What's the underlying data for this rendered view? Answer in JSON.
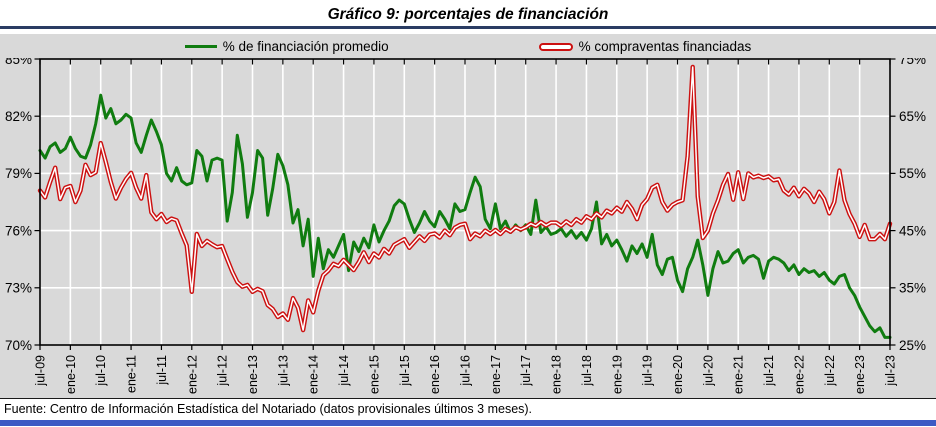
{
  "title": "Gráfico 9: porcentajes de financiación",
  "legend": [
    {
      "label": "% de financiación promedio",
      "color": "#107c10",
      "line_style": "solid"
    },
    {
      "label": "% compraventas financiadas",
      "color": "#cc1111",
      "line_style": "double"
    }
  ],
  "footer": {
    "text": "Fuente: Centro de Información Estadística del Notariado (datos provisionales últimos 3 meses)."
  },
  "colors": {
    "panel_background": "#d9d9d9",
    "plot_background": "#d9d9d9",
    "gridline": "#ffffff",
    "axis": "#000000",
    "title_rule": "#2a3c63",
    "bottom_bar": "#3c59c4",
    "green_series": "#107c10",
    "red_series": "#cc1111"
  },
  "chart_data": {
    "type": "line",
    "title": "Gráfico 9: porcentajes de financiación",
    "frequency": "monthly",
    "x_start": "jul-09",
    "x_end": "jul-23",
    "grid": true,
    "legend_position": "top",
    "plot_bg_color": "#d9d9d9",
    "x_tick_labels": [
      "jul-09",
      "ene-10",
      "jul-10",
      "ene-11",
      "jul-11",
      "ene-12",
      "jul-12",
      "ene-13",
      "jul-13",
      "ene-14",
      "jul-14",
      "ene-15",
      "jul-15",
      "ene-16",
      "jul-16",
      "ene-17",
      "jul-17",
      "ene-18",
      "jul-18",
      "ene-19",
      "jul-19",
      "ene-20",
      "jul-20",
      "ene-21",
      "jul-21",
      "ene-22",
      "jul-22",
      "ene-23",
      "jul-23"
    ],
    "left_axis": {
      "ticks": [
        "85%",
        "82%",
        "79%",
        "76%",
        "73%",
        "70%"
      ],
      "max": 85,
      "min": 70
    },
    "right_axis": {
      "ticks": [
        "75%",
        "65%",
        "55%",
        "45%",
        "35%",
        "25%"
      ],
      "max": 75,
      "min": 25
    },
    "series": [
      {
        "name": "% de financiación promedio",
        "axis": "left",
        "color": "#107c10",
        "line_style": "solid",
        "values": [
          80.2,
          79.8,
          80.4,
          80.6,
          80.1,
          80.3,
          80.9,
          80.3,
          79.9,
          79.8,
          80.5,
          81.6,
          83.1,
          81.9,
          82.4,
          81.6,
          81.8,
          82.1,
          81.9,
          80.6,
          80.1,
          81.0,
          81.8,
          81.2,
          80.5,
          79.0,
          78.6,
          79.3,
          78.6,
          78.4,
          78.5,
          80.2,
          79.9,
          78.6,
          79.7,
          79.8,
          79.7,
          76.5,
          78.0,
          81.0,
          79.5,
          76.7,
          78.0,
          80.2,
          79.8,
          76.8,
          78.2,
          80.0,
          79.4,
          78.4,
          76.4,
          77.1,
          75.2,
          76.6,
          73.6,
          75.6,
          74.0,
          75.0,
          74.6,
          75.2,
          75.8,
          73.9,
          75.4,
          74.9,
          75.6,
          75.1,
          76.3,
          75.4,
          76.0,
          76.5,
          77.3,
          77.6,
          77.4,
          76.6,
          75.9,
          76.4,
          77.0,
          76.5,
          76.2,
          77.0,
          76.6,
          76.1,
          77.4,
          77.0,
          77.1,
          78.0,
          78.8,
          78.3,
          76.6,
          76.1,
          77.4,
          76.1,
          76.5,
          75.9,
          76.3,
          76.0,
          76.3,
          75.8,
          77.6,
          75.9,
          76.2,
          75.8,
          75.9,
          76.1,
          75.7,
          76.0,
          75.6,
          75.9,
          75.5,
          76.1,
          77.5,
          75.3,
          75.8,
          75.2,
          75.5,
          75.0,
          74.4,
          75.2,
          74.8,
          75.3,
          74.6,
          75.8,
          74.2,
          73.7,
          74.5,
          74.6,
          73.4,
          72.8,
          74.0,
          74.6,
          75.5,
          74.2,
          72.6,
          74.0,
          74.9,
          74.3,
          74.4,
          74.8,
          75.0,
          74.3,
          74.6,
          74.7,
          74.5,
          73.5,
          74.4,
          74.6,
          74.5,
          74.3,
          73.9,
          74.2,
          73.7,
          74.0,
          73.8,
          73.9,
          73.6,
          73.8,
          73.4,
          73.2,
          73.6,
          73.7,
          73.0,
          72.6,
          72.0,
          71.5,
          71.0,
          70.7,
          70.9,
          70.4,
          70.4
        ]
      },
      {
        "name": "% compraventas financiadas",
        "axis": "right",
        "color": "#cc1111",
        "line_style": "double",
        "values": [
          52.0,
          50.8,
          53.5,
          56.0,
          50.5,
          52.5,
          52.8,
          50.0,
          52.0,
          56.5,
          54.7,
          55.2,
          60.3,
          57.0,
          53.5,
          50.6,
          52.5,
          54.0,
          55.1,
          52.5,
          50.6,
          54.7,
          48.2,
          47.0,
          47.9,
          46.5,
          47.1,
          46.8,
          44.5,
          42.4,
          34.3,
          44.4,
          42.3,
          43.2,
          42.6,
          42.1,
          42.3,
          40.0,
          37.8,
          36.0,
          35.2,
          35.5,
          34.3,
          34.8,
          34.4,
          32.0,
          31.3,
          29.9,
          30.5,
          29.4,
          33.2,
          31.5,
          27.6,
          32.8,
          30.7,
          34.5,
          37.2,
          38.0,
          39.2,
          38.8,
          39.9,
          39.0,
          38.1,
          39.5,
          41.2,
          39.5,
          41.0,
          40.3,
          41.8,
          41.0,
          42.5,
          43.0,
          43.5,
          42.0,
          43.0,
          44.0,
          43.2,
          44.3,
          44.5,
          43.8,
          45.0,
          44.2,
          45.5,
          46.0,
          46.2,
          43.5,
          44.5,
          44.0,
          45.0,
          44.4,
          45.1,
          44.4,
          45.3,
          44.8,
          45.6,
          45.2,
          45.6,
          46.2,
          45.8,
          46.5,
          45.9,
          46.4,
          46.4,
          45.8,
          46.6,
          46.0,
          47.0,
          46.4,
          47.5,
          47.0,
          48.0,
          47.3,
          48.5,
          48.0,
          49.0,
          48.3,
          50.0,
          48.8,
          47.0,
          49.5,
          50.5,
          52.5,
          53.0,
          50.0,
          48.5,
          49.5,
          50.0,
          50.3,
          58.0,
          73.6,
          51.0,
          43.7,
          45.0,
          48.0,
          50.3,
          53.0,
          54.9,
          50.4,
          55.2,
          50.5,
          55.0,
          54.3,
          54.6,
          54.2,
          54.5,
          53.8,
          54.0,
          52.0,
          51.3,
          52.5,
          51.0,
          52.3,
          51.5,
          50.0,
          51.8,
          50.5,
          48.0,
          50.0,
          55.5,
          50.3,
          47.9,
          46.2,
          43.9,
          46.0,
          43.5,
          43.5,
          44.4,
          43.5,
          46.2
        ]
      }
    ]
  }
}
